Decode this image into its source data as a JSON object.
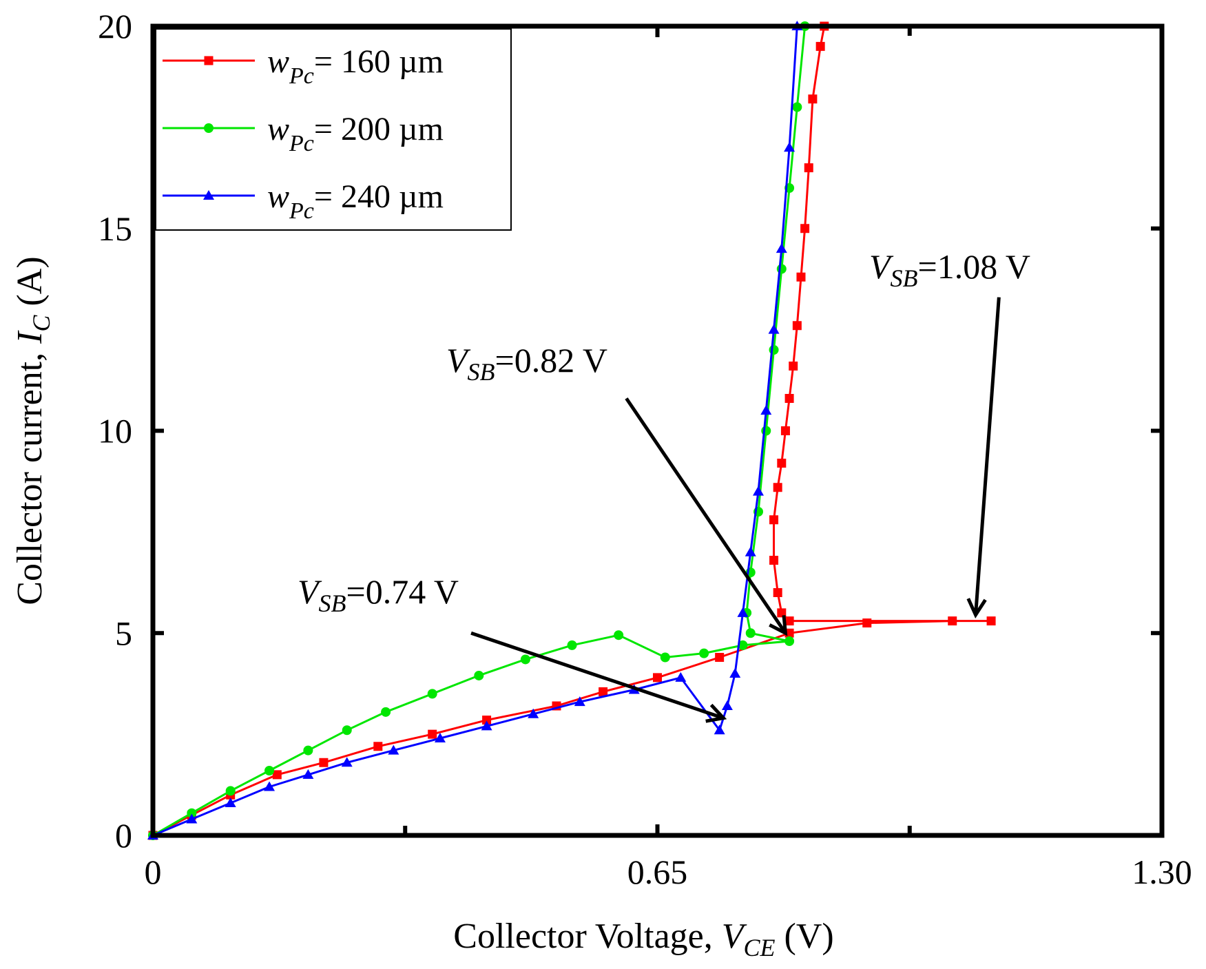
{
  "chart_data": {
    "type": "line",
    "title": "",
    "xlabel": {
      "prefix": "Collector Voltage, ",
      "var": "V",
      "sub": "CE",
      "unit": " (V)"
    },
    "ylabel": {
      "prefix": "Collector current, ",
      "var": "I",
      "sub": "C",
      "unit": " (A)"
    },
    "xlim": [
      0,
      1.3
    ],
    "ylim": [
      0,
      20
    ],
    "x_ticks": [
      0,
      0.65,
      1.3
    ],
    "x_tick_labels": [
      "0",
      "0.65",
      "1.30"
    ],
    "x_minor_ticks": [
      0.325,
      0.975
    ],
    "y_ticks": [
      0,
      5,
      10,
      15,
      20
    ],
    "y_tick_labels": [
      "0",
      "5",
      "10",
      "15",
      "20"
    ],
    "grid": false,
    "legend_position": "top-left",
    "series": [
      {
        "name": "w_Pc= 160 µm",
        "legend": {
          "var": "w",
          "sub": "Pc",
          "text": "= 160  µm"
        },
        "color": "#ff0000",
        "marker": "square",
        "x": [
          0,
          0.05,
          0.1,
          0.16,
          0.22,
          0.29,
          0.36,
          0.43,
          0.52,
          0.58,
          0.65,
          0.73,
          0.82,
          0.92,
          1.03,
          1.08,
          0.82,
          0.81,
          0.805,
          0.8,
          0.8,
          0.805,
          0.81,
          0.815,
          0.82,
          0.825,
          0.83,
          0.835,
          0.84,
          0.845,
          0.85,
          0.86,
          0.865
        ],
        "y": [
          0,
          0.5,
          1.0,
          1.5,
          1.8,
          2.2,
          2.5,
          2.85,
          3.2,
          3.55,
          3.9,
          4.4,
          5.0,
          5.25,
          5.3,
          5.3,
          5.3,
          5.5,
          6.0,
          6.8,
          7.8,
          8.6,
          9.2,
          10.0,
          10.8,
          11.6,
          12.6,
          13.8,
          15.0,
          16.5,
          18.2,
          19.5,
          20.0
        ]
      },
      {
        "name": "w_Pc= 200 µm",
        "legend": {
          "var": "w",
          "sub": "Pc",
          "text": "= 200  µm"
        },
        "color": "#00e600",
        "marker": "circle",
        "x": [
          0,
          0.05,
          0.1,
          0.15,
          0.2,
          0.25,
          0.3,
          0.36,
          0.42,
          0.48,
          0.54,
          0.6,
          0.66,
          0.71,
          0.76,
          0.82,
          0.77,
          0.765,
          0.77,
          0.78,
          0.79,
          0.8,
          0.81,
          0.82,
          0.83,
          0.84
        ],
        "y": [
          0,
          0.55,
          1.1,
          1.6,
          2.1,
          2.6,
          3.05,
          3.5,
          3.95,
          4.35,
          4.7,
          4.95,
          4.4,
          4.5,
          4.7,
          4.8,
          5.0,
          5.5,
          6.5,
          8.0,
          10.0,
          12.0,
          14.0,
          16.0,
          18.0,
          20.0
        ]
      },
      {
        "name": "w_Pc= 240 µm",
        "legend": {
          "var": "w",
          "sub": "Pc",
          "text": "= 240  µm"
        },
        "color": "#0000ff",
        "marker": "triangle",
        "x": [
          0,
          0.05,
          0.1,
          0.15,
          0.2,
          0.25,
          0.31,
          0.37,
          0.43,
          0.49,
          0.55,
          0.62,
          0.68,
          0.73,
          0.74,
          0.75,
          0.76,
          0.77,
          0.78,
          0.79,
          0.8,
          0.81,
          0.82,
          0.83
        ],
        "y": [
          0,
          0.4,
          0.8,
          1.2,
          1.5,
          1.8,
          2.1,
          2.4,
          2.7,
          3.0,
          3.3,
          3.6,
          3.9,
          2.6,
          3.2,
          4.0,
          5.5,
          7.0,
          8.5,
          10.5,
          12.5,
          14.5,
          17.0,
          20.0
        ]
      }
    ],
    "annotations": [
      {
        "var": "V",
        "sub": "SB",
        "text": "=1.08 V",
        "target_x": 1.06,
        "target_y": 5.45,
        "from_x": 1.09,
        "from_y": 13.3
      },
      {
        "var": "V",
        "sub": "SB",
        "text": "=0.82 V",
        "target_x": 0.815,
        "target_y": 5.0,
        "from_x": 0.61,
        "from_y": 10.8
      },
      {
        "var": "V",
        "sub": "SB",
        "text": "=0.74 V",
        "target_x": 0.735,
        "target_y": 2.9,
        "from_x": 0.41,
        "from_y": 5.0
      }
    ]
  }
}
